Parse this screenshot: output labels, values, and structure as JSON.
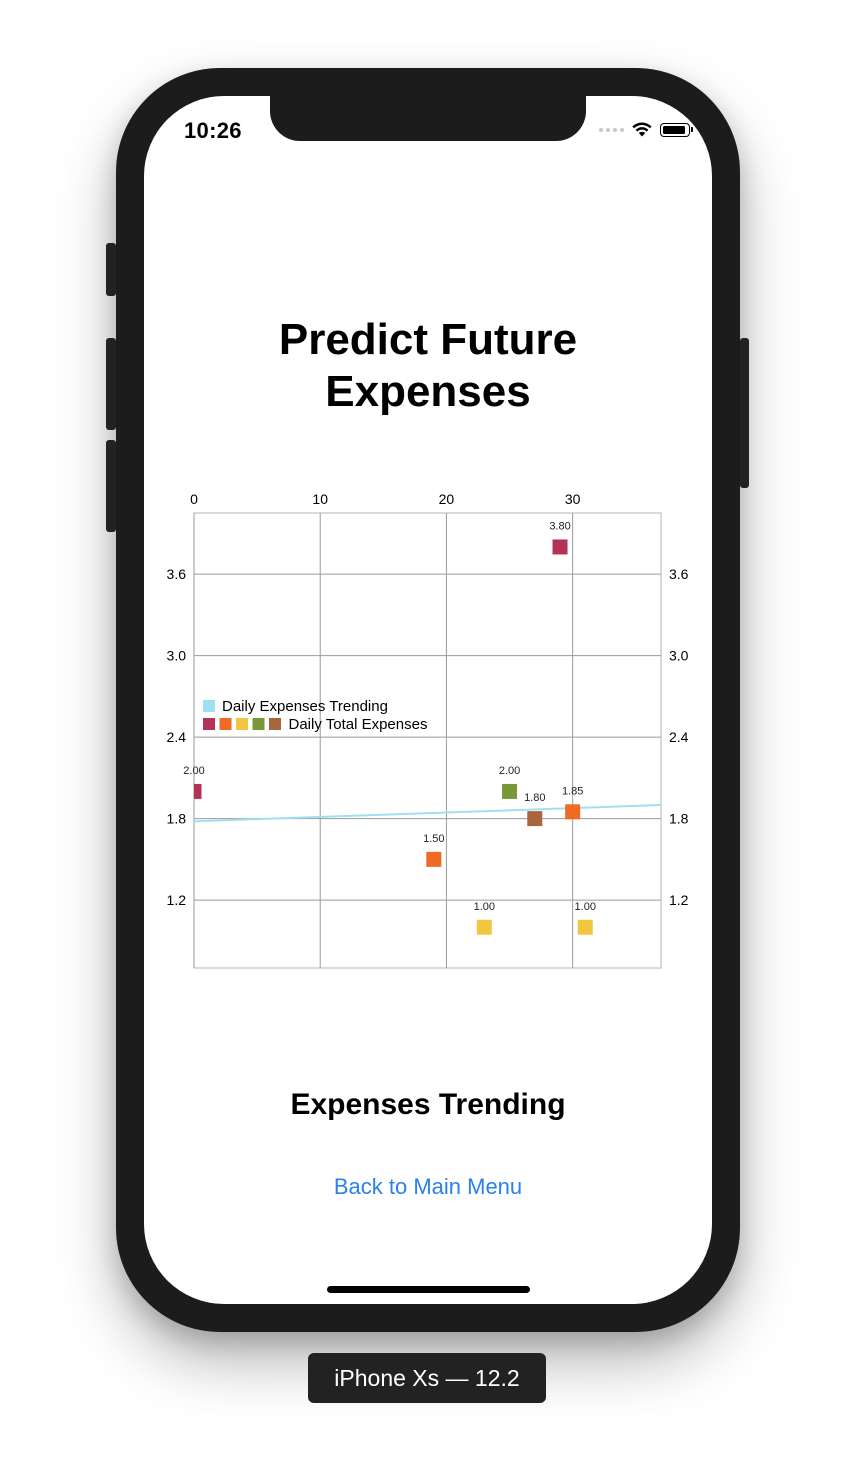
{
  "status_bar": {
    "time": "10:26",
    "wifi_icon": "wifi-icon",
    "battery_icon": "battery-icon"
  },
  "page": {
    "title_line1": "Predict Future",
    "title_line2": "Expenses",
    "section_title": "Expenses Trending",
    "back_link": "Back to Main Menu"
  },
  "device_label": "iPhone Xs — 12.2",
  "chart_data": {
    "type": "scatter",
    "x_axis": {
      "position": "top",
      "ticks": [
        0,
        10,
        20,
        30
      ],
      "range": [
        0,
        37
      ]
    },
    "y_axis": {
      "position": "both",
      "ticks": [
        "1.2",
        "1.8",
        "2.4",
        "3.0",
        "3.6"
      ],
      "range": [
        0.7,
        4.05
      ]
    },
    "grid": true,
    "legend": {
      "placement": "bottom-left",
      "entries": [
        "Daily Expenses Trending",
        "Daily Total Expenses"
      ]
    },
    "series": [
      {
        "name": "Daily Expenses Trending",
        "kind": "line",
        "color": "#9fe0f0",
        "points": [
          {
            "x": 0,
            "y": 1.78
          },
          {
            "x": 37,
            "y": 1.9
          }
        ]
      },
      {
        "name": "Daily Total Expenses",
        "kind": "points",
        "points": [
          {
            "x": 0,
            "y": 2.0,
            "label": "2.00",
            "color": "#b33256"
          },
          {
            "x": 19,
            "y": 1.5,
            "label": "1.50",
            "color": "#ef6a22"
          },
          {
            "x": 23,
            "y": 1.0,
            "label": "1.00",
            "color": "#f0c73e"
          },
          {
            "x": 25,
            "y": 2.0,
            "label": "2.00",
            "color": "#78983a"
          },
          {
            "x": 27,
            "y": 1.8,
            "label": "1.80",
            "color": "#a8653e"
          },
          {
            "x": 29,
            "y": 3.8,
            "label": "3.80",
            "color": "#b33256"
          },
          {
            "x": 30,
            "y": 1.85,
            "label": "1.85",
            "color": "#ef6a22"
          },
          {
            "x": 31,
            "y": 1.0,
            "label": "1.00",
            "color": "#f0c73e"
          }
        ]
      }
    ],
    "legend_swatches": [
      "#b33256",
      "#ef6a22",
      "#f0c73e",
      "#78983a",
      "#a8653e"
    ]
  }
}
